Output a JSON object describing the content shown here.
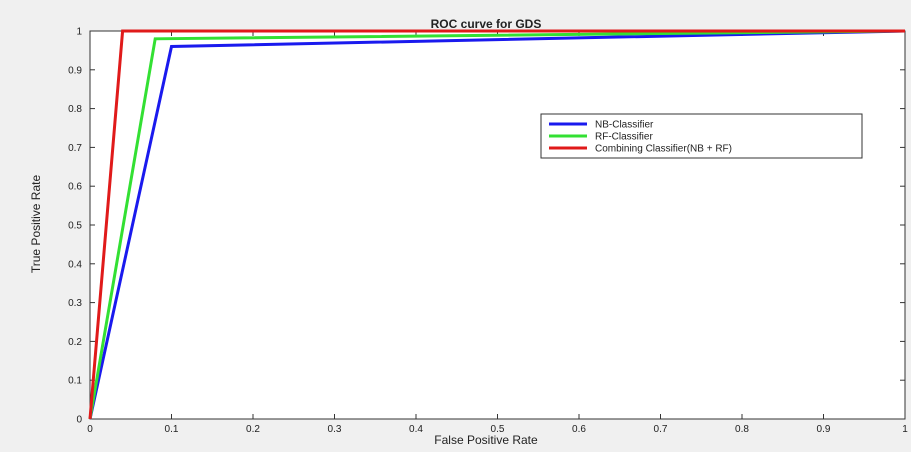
{
  "chart_data": {
    "type": "line",
    "title": "ROC curve for GDS",
    "xlabel": "False Positive Rate",
    "ylabel": "True Positive Rate",
    "xlim": [
      0,
      1
    ],
    "ylim": [
      0,
      1
    ],
    "xticks": [
      "0",
      "0.1",
      "0.2",
      "0.3",
      "0.4",
      "0.5",
      "0.6",
      "0.7",
      "0.8",
      "0.9",
      "1"
    ],
    "yticks": [
      "0",
      "0.1",
      "0.2",
      "0.3",
      "0.4",
      "0.5",
      "0.6",
      "0.7",
      "0.8",
      "0.9",
      "1"
    ],
    "grid": false,
    "legend_position": "right",
    "series": [
      {
        "name": "NB-Classifier",
        "color": "#1a1aee",
        "x": [
          0,
          0.1,
          1
        ],
        "y": [
          0,
          0.96,
          1
        ]
      },
      {
        "name": "RF-Classifier",
        "color": "#33e033",
        "x": [
          0,
          0.08,
          1
        ],
        "y": [
          0,
          0.98,
          1
        ]
      },
      {
        "name": "Combining Classifier(NB + RF)",
        "color": "#e01a1a",
        "x": [
          0,
          0.04,
          1
        ],
        "y": [
          0,
          1,
          1
        ]
      }
    ]
  }
}
